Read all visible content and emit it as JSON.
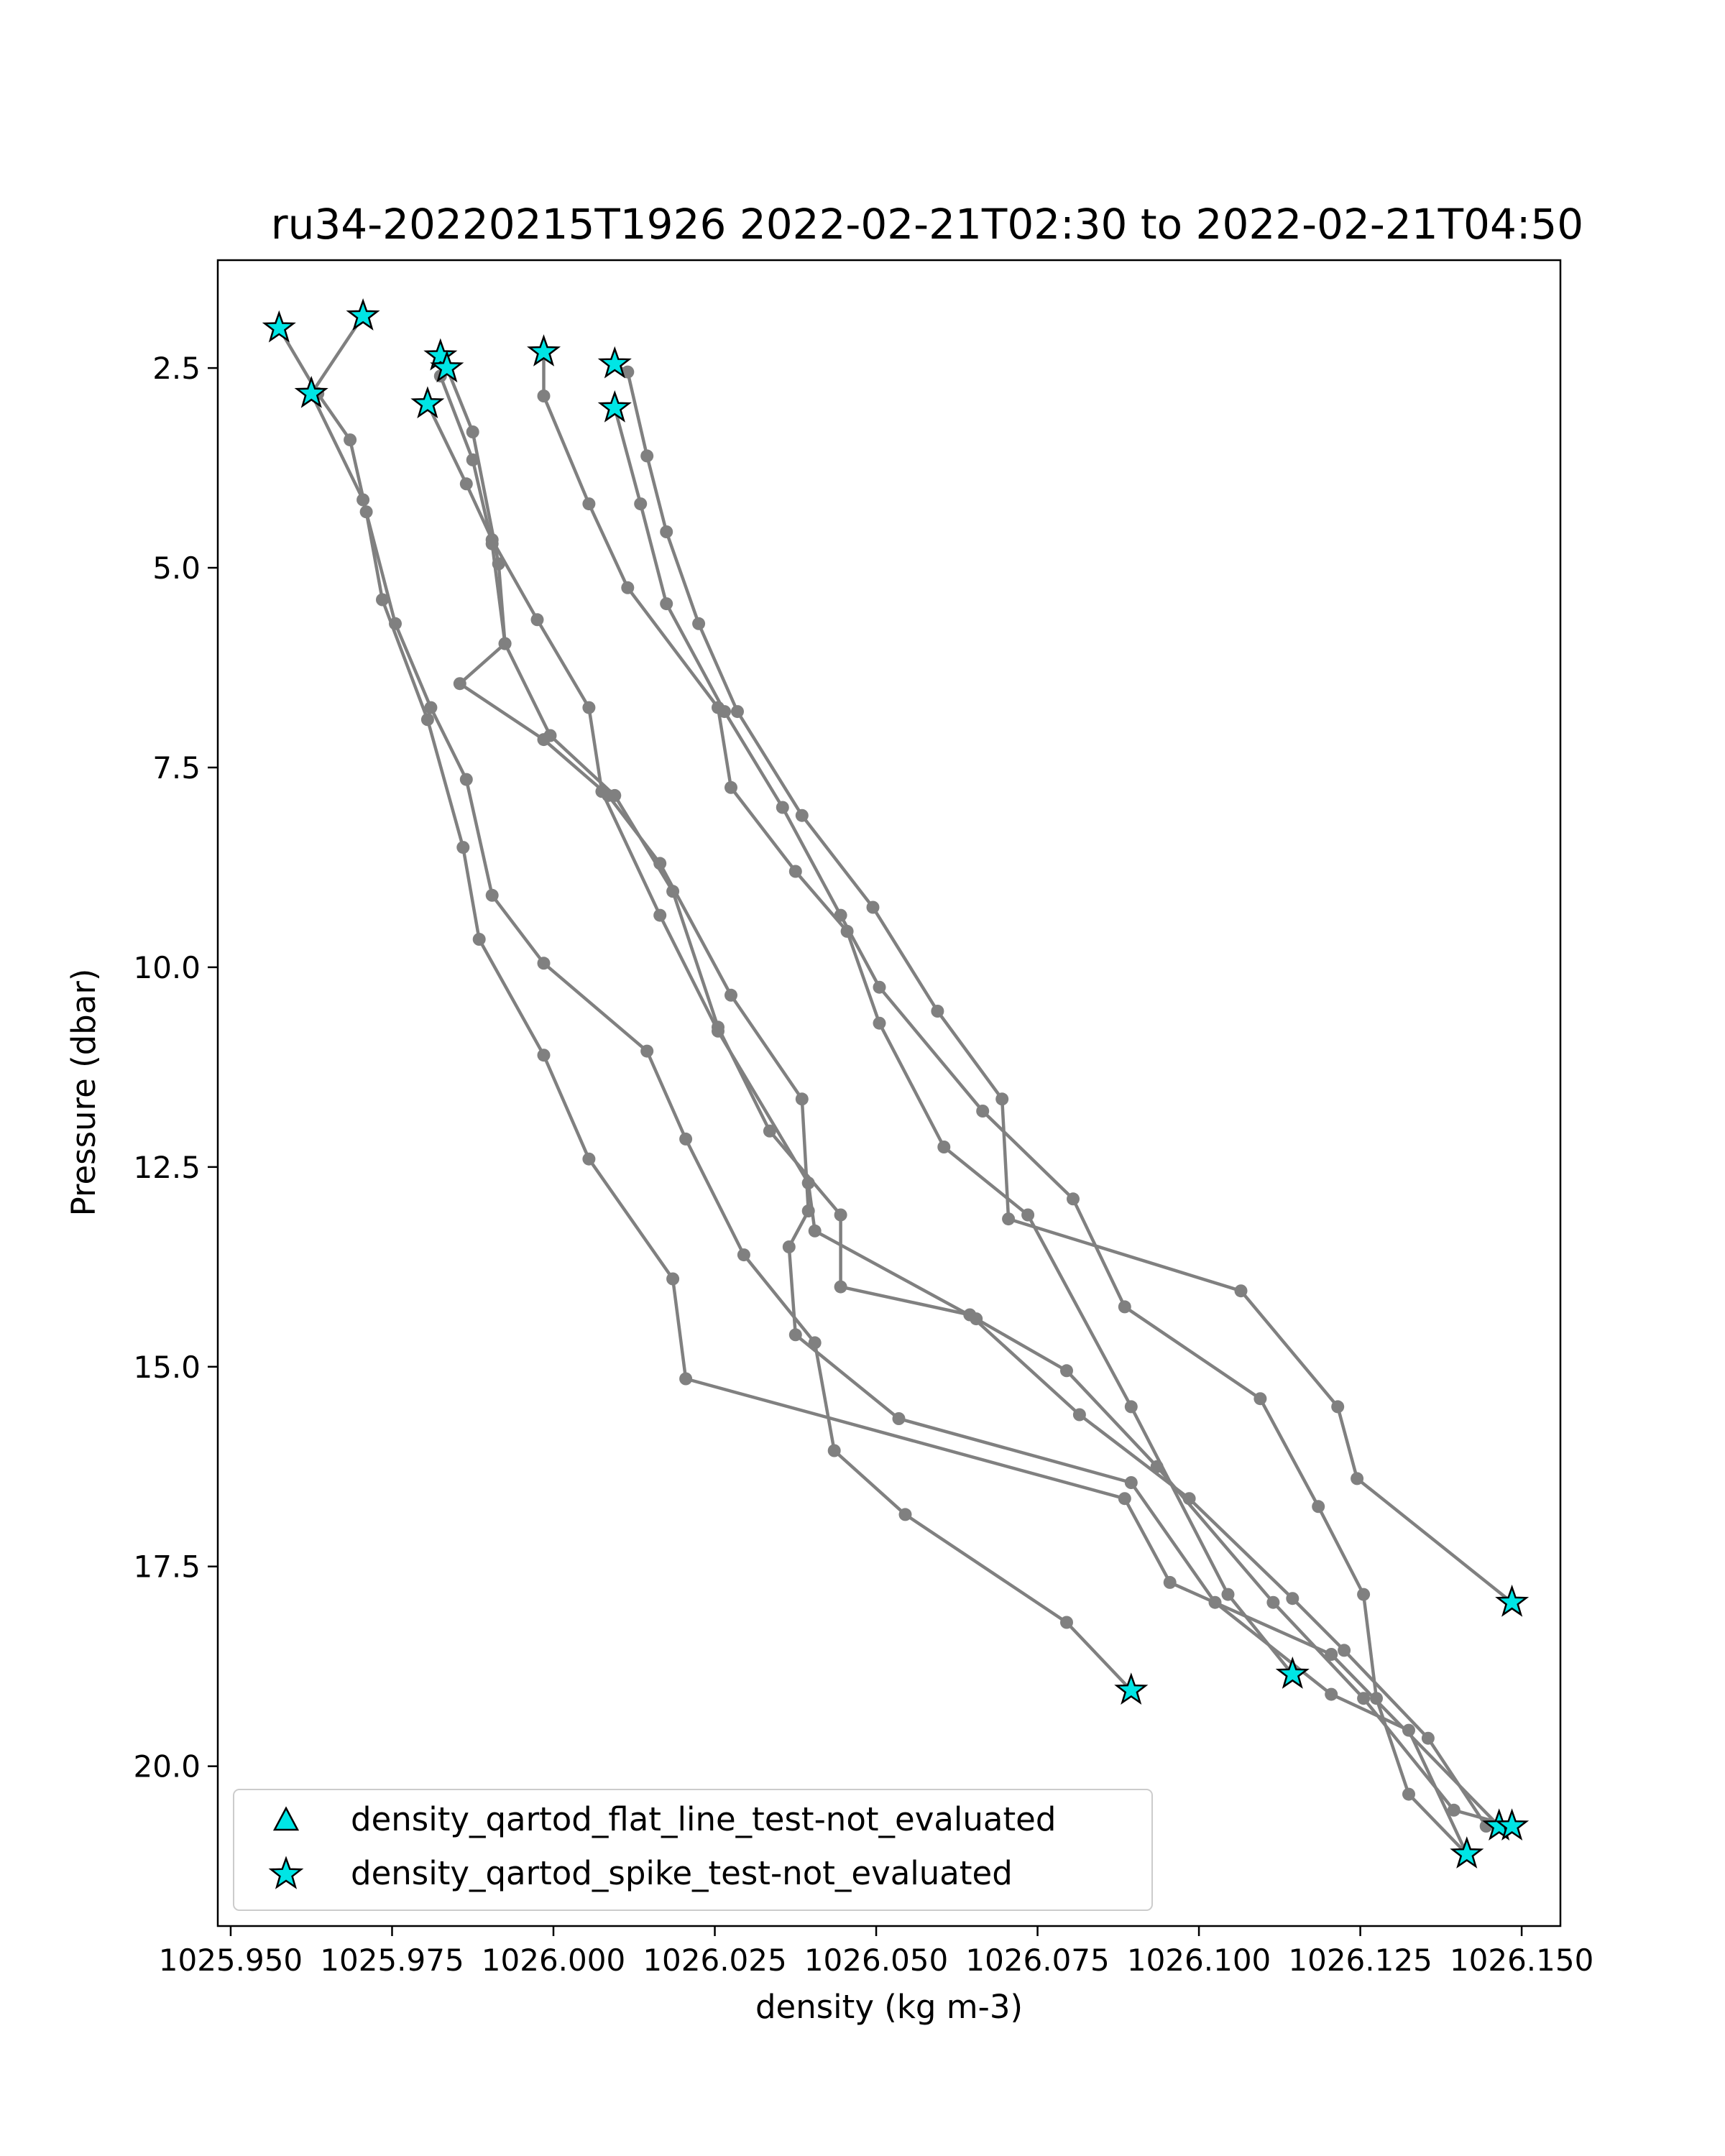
{
  "chart_data": {
    "type": "line",
    "title": "ru34-20220215T1926 2022-02-21T02:30 to 2022-02-21T04:50",
    "xlabel": "density (kg m-3)",
    "ylabel": "Pressure (dbar)",
    "xlim": [
      1025.948,
      1026.156
    ],
    "ylim": [
      22.0,
      1.15
    ],
    "y_inverted": true,
    "grid": false,
    "line_color": "#808080",
    "marker_color": "#808080",
    "flag_color": "#00e5e5",
    "xticks": [
      1025.95,
      1025.975,
      1026.0,
      1026.025,
      1026.05,
      1026.075,
      1026.1,
      1026.125,
      1026.15
    ],
    "xtick_labels": [
      "1025.950",
      "1025.975",
      "1026.000",
      "1026.025",
      "1026.050",
      "1026.075",
      "1026.100",
      "1026.125",
      "1026.150"
    ],
    "yticks": [
      2.5,
      5.0,
      7.5,
      10.0,
      12.5,
      15.0,
      17.5,
      20.0
    ],
    "ytick_labels": [
      "2.5",
      "5.0",
      "7.5",
      "10.0",
      "12.5",
      "15.0",
      "17.5",
      "20.0"
    ],
    "legend": {
      "position": "lower-left",
      "entries": [
        {
          "marker": "triangle",
          "label": "density_qartod_flat_line_test-not_evaluated"
        },
        {
          "marker": "star",
          "label": "density_qartod_spike_test-not_evaluated"
        }
      ]
    },
    "series": [
      {
        "points": [
          [
            1025.9575,
            2.0
          ],
          [
            1025.9635,
            2.82
          ],
          [
            1025.9685,
            3.4
          ],
          [
            1025.971,
            4.3
          ],
          [
            1025.9735,
            5.4
          ],
          [
            1025.9805,
            6.9
          ],
          [
            1025.986,
            8.5
          ],
          [
            1025.9885,
            9.65
          ],
          [
            1025.9985,
            11.1
          ],
          [
            1026.0055,
            12.4
          ],
          [
            1026.0185,
            13.9
          ],
          [
            1026.0205,
            15.15
          ],
          [
            1026.0885,
            16.65
          ],
          [
            1026.0955,
            17.7
          ],
          [
            1026.1205,
            18.6
          ],
          [
            1026.1465,
            20.75
          ]
        ],
        "flagged": [
          [
            1025.9575,
            2.0
          ],
          [
            1026.1465,
            20.75
          ]
        ]
      },
      {
        "points": [
          [
            1025.9705,
            1.85
          ],
          [
            1025.9625,
            2.82
          ],
          [
            1025.9705,
            4.15
          ],
          [
            1025.9755,
            5.7
          ],
          [
            1025.981,
            6.75
          ],
          [
            1025.9865,
            7.65
          ],
          [
            1025.9905,
            9.1
          ],
          [
            1025.9985,
            9.95
          ],
          [
            1026.0145,
            11.05
          ],
          [
            1026.0205,
            12.15
          ],
          [
            1026.0295,
            13.6
          ],
          [
            1026.0405,
            14.7
          ],
          [
            1026.0435,
            16.05
          ],
          [
            1026.0545,
            16.85
          ],
          [
            1026.0795,
            18.2
          ],
          [
            1026.0895,
            19.05
          ]
        ],
        "flagged": [
          [
            1025.9705,
            1.85
          ],
          [
            1025.9625,
            2.82
          ],
          [
            1026.0895,
            19.05
          ]
        ]
      },
      {
        "points": [
          [
            1025.9985,
            2.3
          ],
          [
            1025.9985,
            2.85
          ],
          [
            1026.0055,
            4.2
          ],
          [
            1026.0115,
            5.25
          ],
          [
            1026.0255,
            6.75
          ],
          [
            1026.0275,
            7.75
          ],
          [
            1026.0375,
            8.8
          ],
          [
            1026.0455,
            9.55
          ],
          [
            1026.0505,
            10.7
          ],
          [
            1026.0605,
            12.25
          ],
          [
            1026.0735,
            13.1
          ],
          [
            1026.0895,
            15.5
          ],
          [
            1026.1045,
            17.85
          ],
          [
            1026.1145,
            18.85
          ]
        ],
        "flagged": [
          [
            1025.9985,
            2.3
          ],
          [
            1026.1145,
            18.85
          ]
        ]
      },
      {
        "points": [
          [
            1026.0095,
            2.45
          ],
          [
            1026.0115,
            2.55
          ],
          [
            1026.0145,
            3.6
          ],
          [
            1026.0175,
            4.55
          ],
          [
            1026.0225,
            5.7
          ],
          [
            1026.0285,
            6.8
          ],
          [
            1026.0385,
            8.1
          ],
          [
            1026.0495,
            9.25
          ],
          [
            1026.0595,
            10.55
          ],
          [
            1026.0695,
            11.65
          ],
          [
            1026.0705,
            13.15
          ],
          [
            1026.1065,
            14.05
          ],
          [
            1026.1215,
            15.5
          ],
          [
            1026.1245,
            16.4
          ],
          [
            1026.1485,
            17.95
          ]
        ],
        "flagged": [
          [
            1026.0095,
            2.45
          ],
          [
            1026.1485,
            17.95
          ]
        ]
      },
      {
        "points": [
          [
            1026.0095,
            3.0
          ],
          [
            1026.0135,
            4.2
          ],
          [
            1026.0175,
            5.45
          ],
          [
            1026.0265,
            6.8
          ],
          [
            1026.0355,
            8.0
          ],
          [
            1026.0445,
            9.35
          ],
          [
            1026.0505,
            10.25
          ],
          [
            1026.0665,
            11.8
          ],
          [
            1026.0805,
            12.9
          ],
          [
            1026.0885,
            14.25
          ],
          [
            1026.1095,
            15.4
          ],
          [
            1026.1185,
            16.75
          ],
          [
            1026.1255,
            17.85
          ],
          [
            1026.1275,
            19.15
          ],
          [
            1026.1325,
            20.35
          ],
          [
            1026.1415,
            21.1
          ]
        ],
        "flagged": [
          [
            1026.0095,
            3.0
          ],
          [
            1026.1415,
            21.1
          ]
        ]
      },
      {
        "points": [
          [
            1025.9825,
            2.35
          ],
          [
            1025.9835,
            2.5
          ],
          [
            1025.9875,
            3.3
          ],
          [
            1025.9915,
            4.95
          ],
          [
            1025.9925,
            5.95
          ],
          [
            1025.9995,
            7.1
          ],
          [
            1026.0095,
            7.85
          ],
          [
            1026.0185,
            9.05
          ],
          [
            1026.0255,
            10.75
          ],
          [
            1026.0335,
            12.05
          ],
          [
            1026.0445,
            13.1
          ],
          [
            1026.0445,
            14.0
          ],
          [
            1026.0645,
            14.35
          ],
          [
            1026.0815,
            15.6
          ],
          [
            1026.0985,
            16.65
          ],
          [
            1026.1145,
            17.9
          ],
          [
            1026.1225,
            18.55
          ],
          [
            1026.1355,
            19.65
          ],
          [
            1026.1445,
            20.75
          ]
        ],
        "flagged": [
          [
            1025.9825,
            2.35
          ],
          [
            1025.9835,
            2.5
          ]
        ]
      },
      {
        "points": [
          [
            1025.9805,
            2.95
          ],
          [
            1025.9865,
            3.95
          ],
          [
            1025.9905,
            4.65
          ],
          [
            1025.9975,
            5.65
          ],
          [
            1026.0055,
            6.75
          ],
          [
            1026.0075,
            7.8
          ],
          [
            1026.0165,
            9.35
          ],
          [
            1026.0255,
            10.8
          ],
          [
            1026.0395,
            12.7
          ],
          [
            1026.0405,
            13.3
          ],
          [
            1026.0655,
            14.4
          ],
          [
            1026.0795,
            15.05
          ],
          [
            1026.0935,
            16.25
          ],
          [
            1026.1115,
            17.95
          ],
          [
            1026.1255,
            19.15
          ],
          [
            1026.1395,
            20.55
          ],
          [
            1026.1485,
            20.75
          ]
        ],
        "flagged": [
          [
            1025.9805,
            2.95
          ],
          [
            1026.1485,
            20.75
          ]
        ]
      },
      {
        "points": [
          [
            1025.9825,
            2.6
          ],
          [
            1025.9875,
            3.65
          ],
          [
            1025.9905,
            4.7
          ],
          [
            1025.9925,
            5.95
          ],
          [
            1025.9855,
            6.45
          ],
          [
            1025.9985,
            7.15
          ],
          [
            1026.0085,
            7.85
          ],
          [
            1026.0165,
            8.7
          ],
          [
            1026.0275,
            10.35
          ],
          [
            1026.0385,
            11.65
          ],
          [
            1026.0395,
            13.05
          ],
          [
            1026.0365,
            13.5
          ],
          [
            1026.0375,
            14.6
          ],
          [
            1026.0535,
            15.65
          ],
          [
            1026.0895,
            16.45
          ],
          [
            1026.1025,
            17.95
          ],
          [
            1026.1205,
            19.1
          ],
          [
            1026.1325,
            19.55
          ],
          [
            1026.1415,
            21.1
          ]
        ],
        "flagged": []
      }
    ]
  }
}
